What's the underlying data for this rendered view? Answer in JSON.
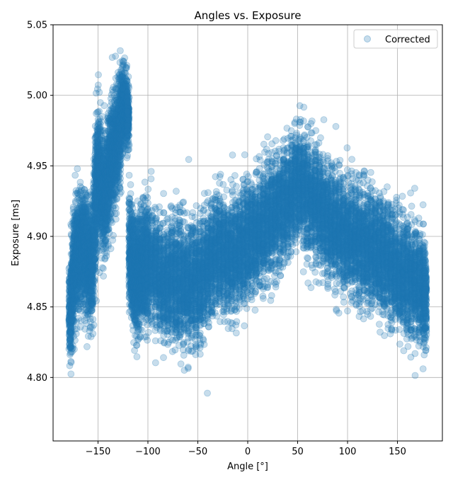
{
  "chart_data": {
    "type": "scatter",
    "title": "Angles vs. Exposure",
    "xlabel": "Angle [°]",
    "ylabel": "Exposure [ms]",
    "xlim": [
      -195,
      195
    ],
    "ylim": [
      4.755,
      5.05
    ],
    "xticks": [
      -150,
      -100,
      -50,
      0,
      50,
      100,
      150
    ],
    "xtick_labels": [
      "−150",
      "−100",
      "−50",
      "0",
      "50",
      "100",
      "150"
    ],
    "yticks": [
      4.8,
      4.85,
      4.9,
      4.95,
      5.0,
      5.05
    ],
    "ytick_labels": [
      "4.80",
      "4.85",
      "4.90",
      "4.95",
      "5.00",
      "5.05"
    ],
    "grid": true,
    "legend_position": "top-right",
    "series": [
      {
        "name": "Corrected",
        "color": "#1f77b4",
        "alpha": 0.25,
        "x": [
          -178,
          -176,
          -174,
          -172,
          -170,
          -168,
          -166,
          -164,
          -162,
          -160,
          -158,
          -156,
          -154,
          -152,
          -150,
          -148,
          -146,
          -144,
          -142,
          -140,
          -138,
          -136,
          -134,
          -132,
          -130,
          -128,
          -126,
          -124,
          -122,
          -120,
          -118,
          -116,
          -114,
          -112,
          -110,
          -108,
          -106,
          -104,
          -102,
          -100,
          -96,
          -92,
          -88,
          -84,
          -80,
          -76,
          -72,
          -68,
          -64,
          -60,
          -56,
          -52,
          -48,
          -44,
          -40,
          -36,
          -32,
          -28,
          -24,
          -20,
          -16,
          -12,
          -8,
          -4,
          0,
          4,
          8,
          12,
          16,
          20,
          24,
          28,
          32,
          36,
          40,
          44,
          48,
          52,
          56,
          60,
          64,
          68,
          72,
          76,
          80,
          84,
          88,
          92,
          96,
          100,
          104,
          108,
          112,
          116,
          120,
          124,
          128,
          132,
          136,
          140,
          144,
          148,
          152,
          156,
          160,
          164,
          168,
          172,
          176,
          178
        ],
        "y": [
          4.845,
          4.862,
          4.875,
          4.885,
          4.888,
          4.89,
          4.892,
          4.89,
          4.888,
          4.885,
          4.88,
          4.875,
          4.9,
          4.93,
          4.95,
          4.945,
          4.935,
          4.925,
          4.93,
          4.94,
          4.95,
          4.955,
          4.96,
          4.965,
          4.97,
          4.975,
          4.99,
          4.995,
          4.99,
          4.985,
          4.89,
          4.88,
          4.875,
          4.87,
          4.872,
          4.875,
          4.878,
          4.88,
          4.882,
          4.88,
          4.878,
          4.875,
          4.872,
          4.87,
          4.868,
          4.87,
          4.872,
          4.868,
          4.866,
          4.865,
          4.866,
          4.868,
          4.87,
          4.875,
          4.88,
          4.885,
          4.888,
          4.89,
          4.888,
          4.885,
          4.885,
          4.888,
          4.892,
          4.895,
          4.898,
          4.9,
          4.902,
          4.905,
          4.908,
          4.91,
          4.912,
          4.915,
          4.918,
          4.922,
          4.926,
          4.93,
          4.935,
          4.935,
          4.932,
          4.93,
          4.928,
          4.925,
          4.92,
          4.915,
          4.91,
          4.908,
          4.906,
          4.905,
          4.902,
          4.9,
          4.898,
          4.896,
          4.895,
          4.894,
          4.893,
          4.892,
          4.89,
          4.888,
          4.885,
          4.882,
          4.88,
          4.878,
          4.875,
          4.872,
          4.87,
          4.868,
          4.866,
          4.864,
          4.862,
          4.86
        ],
        "spread": [
          0.04,
          0.045,
          0.05,
          0.05,
          0.05,
          0.05,
          0.05,
          0.05,
          0.05,
          0.05,
          0.05,
          0.05,
          0.055,
          0.06,
          0.06,
          0.055,
          0.05,
          0.05,
          0.05,
          0.05,
          0.05,
          0.05,
          0.05,
          0.05,
          0.05,
          0.05,
          0.035,
          0.03,
          0.03,
          0.03,
          0.05,
          0.05,
          0.05,
          0.05,
          0.05,
          0.05,
          0.05,
          0.05,
          0.05,
          0.05,
          0.05,
          0.05,
          0.05,
          0.05,
          0.05,
          0.05,
          0.055,
          0.055,
          0.055,
          0.055,
          0.055,
          0.055,
          0.055,
          0.05,
          0.05,
          0.05,
          0.05,
          0.05,
          0.05,
          0.05,
          0.05,
          0.05,
          0.05,
          0.05,
          0.05,
          0.05,
          0.05,
          0.05,
          0.05,
          0.05,
          0.05,
          0.05,
          0.05,
          0.05,
          0.05,
          0.05,
          0.05,
          0.05,
          0.05,
          0.05,
          0.05,
          0.05,
          0.05,
          0.05,
          0.05,
          0.05,
          0.05,
          0.05,
          0.05,
          0.05,
          0.05,
          0.05,
          0.05,
          0.05,
          0.05,
          0.05,
          0.05,
          0.05,
          0.05,
          0.05,
          0.05,
          0.05,
          0.05,
          0.05,
          0.05,
          0.05,
          0.05,
          0.05,
          0.05,
          0.045
        ]
      }
    ]
  }
}
